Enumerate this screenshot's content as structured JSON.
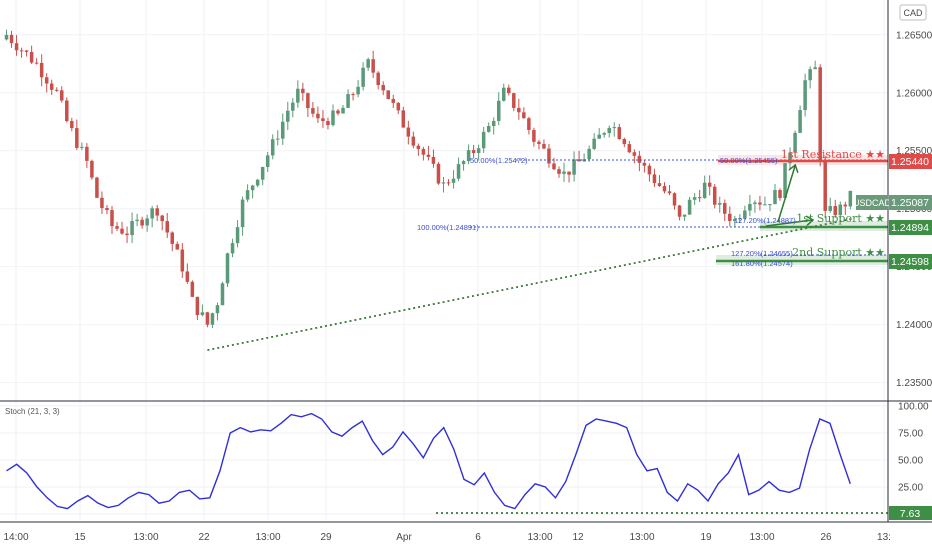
{
  "currency": "CAD",
  "instrument": "USDCAD",
  "last_price": "1.25087",
  "oscillator_title": "Stoch (21, 3, 3)",
  "colors": {
    "up": "#5a9a78",
    "down": "#c9504a",
    "resistance": "#e04a48",
    "support": "#4c9a52",
    "fib": "#3c4fd0",
    "stoch": "#2f2fd8",
    "trend": "#3b7a3b",
    "grid": "#f0f2f6"
  },
  "levels": {
    "resistance_1": {
      "label": "1st Resistance ★★",
      "price": "1.25440"
    },
    "support_1": {
      "label": "1st Support ★★",
      "price": "1.24894"
    },
    "support_2": {
      "label": "2nd Support ★★",
      "price": "1.24598"
    }
  },
  "fib_labels": [
    "50.00%(1.25472)",
    "100.00%(1.24891)",
    "50.00%(1.25455)",
    "127.20%(1.24887)",
    "127.20%(1.24655)",
    "161.80%(1.24574)"
  ],
  "stoch_level": "7.63",
  "chart_data": [
    {
      "type": "candlestick",
      "ylim": [
        1.2335,
        1.268
      ],
      "y_ticks": [
        "1.26500",
        "1.26000",
        "1.25500",
        "1.25000",
        "1.24500",
        "1.24000",
        "1.23500"
      ],
      "y_tick_values": [
        1.265,
        1.26,
        1.255,
        1.25,
        1.245,
        1.24,
        1.235
      ],
      "x_ticks": [
        "14:00",
        "15",
        "13:00",
        "22",
        "13:00",
        "29",
        "Apr",
        "6",
        "13:00",
        "12",
        "13:00",
        "19",
        "13:00",
        "26",
        "13:"
      ],
      "close_path": [
        [
          0,
          1.265
        ],
        [
          6,
          1.2625
        ],
        [
          10,
          1.26
        ],
        [
          12,
          1.2575
        ],
        [
          16,
          1.254
        ],
        [
          18,
          1.251
        ],
        [
          21,
          1.2485
        ],
        [
          24,
          1.248
        ],
        [
          28,
          1.2495
        ],
        [
          30,
          1.25
        ],
        [
          33,
          1.247
        ],
        [
          35,
          1.245
        ],
        [
          37,
          1.242
        ],
        [
          40,
          1.24
        ],
        [
          42,
          1.242
        ],
        [
          44,
          1.246
        ],
        [
          47,
          1.2505
        ],
        [
          50,
          1.253
        ],
        [
          53,
          1.2555
        ],
        [
          56,
          1.2585
        ],
        [
          58,
          1.26
        ],
        [
          62,
          1.2575
        ],
        [
          66,
          1.258
        ],
        [
          69,
          1.26
        ],
        [
          72,
          1.2625
        ],
        [
          75,
          1.2605
        ],
        [
          78,
          1.258
        ],
        [
          81,
          1.256
        ],
        [
          84,
          1.254
        ],
        [
          87,
          1.252
        ],
        [
          90,
          1.2535
        ],
        [
          93,
          1.255
        ],
        [
          96,
          1.257
        ],
        [
          99,
          1.26
        ],
        [
          102,
          1.2585
        ],
        [
          105,
          1.256
        ],
        [
          108,
          1.2545
        ],
        [
          111,
          1.253
        ],
        [
          114,
          1.254
        ],
        [
          117,
          1.2555
        ],
        [
          120,
          1.2575
        ],
        [
          123,
          1.256
        ],
        [
          126,
          1.254
        ],
        [
          129,
          1.2525
        ],
        [
          132,
          1.251
        ],
        [
          134,
          1.249
        ],
        [
          136,
          1.2505
        ],
        [
          139,
          1.252
        ],
        [
          142,
          1.25
        ],
        [
          145,
          1.249
        ],
        [
          148,
          1.251
        ],
        [
          151,
          1.2505
        ],
        [
          154,
          1.2515
        ],
        [
          157,
          1.257
        ],
        [
          159,
          1.261
        ],
        [
          161,
          1.262
        ],
        [
          162,
          1.2545
        ],
        [
          163,
          1.2495
        ],
        [
          166,
          1.25
        ],
        [
          168,
          1.251
        ]
      ],
      "trendline": [
        [
          40,
          1.2378
        ],
        [
          168,
          1.2491
        ]
      ]
    },
    {
      "type": "line",
      "name": "Stoch (21, 3, 3)",
      "ylim": [
        0,
        100
      ],
      "y_ticks": [
        "100.00",
        "75.00",
        "50.00",
        "25.00",
        "0.00"
      ],
      "y_tick_values": [
        100,
        75,
        50,
        25,
        0
      ],
      "points": [
        [
          0,
          40
        ],
        [
          2,
          46
        ],
        [
          4,
          38
        ],
        [
          6,
          25
        ],
        [
          8,
          15
        ],
        [
          10,
          7
        ],
        [
          12,
          5
        ],
        [
          14,
          12
        ],
        [
          16,
          17
        ],
        [
          18,
          10
        ],
        [
          20,
          6
        ],
        [
          22,
          8
        ],
        [
          24,
          15
        ],
        [
          26,
          20
        ],
        [
          28,
          18
        ],
        [
          30,
          10
        ],
        [
          32,
          12
        ],
        [
          34,
          20
        ],
        [
          36,
          22
        ],
        [
          38,
          14
        ],
        [
          40,
          15
        ],
        [
          42,
          40
        ],
        [
          44,
          75
        ],
        [
          46,
          80
        ],
        [
          48,
          76
        ],
        [
          50,
          78
        ],
        [
          52,
          77
        ],
        [
          54,
          84
        ],
        [
          56,
          92
        ],
        [
          58,
          90
        ],
        [
          60,
          93
        ],
        [
          62,
          88
        ],
        [
          64,
          76
        ],
        [
          66,
          72
        ],
        [
          68,
          80
        ],
        [
          70,
          86
        ],
        [
          72,
          68
        ],
        [
          74,
          55
        ],
        [
          76,
          62
        ],
        [
          78,
          76
        ],
        [
          80,
          65
        ],
        [
          82,
          52
        ],
        [
          84,
          70
        ],
        [
          86,
          80
        ],
        [
          88,
          60
        ],
        [
          90,
          32
        ],
        [
          92,
          27
        ],
        [
          94,
          38
        ],
        [
          96,
          20
        ],
        [
          98,
          8
        ],
        [
          100,
          5
        ],
        [
          102,
          18
        ],
        [
          104,
          28
        ],
        [
          106,
          25
        ],
        [
          108,
          15
        ],
        [
          110,
          30
        ],
        [
          112,
          55
        ],
        [
          114,
          82
        ],
        [
          116,
          88
        ],
        [
          118,
          86
        ],
        [
          120,
          84
        ],
        [
          122,
          80
        ],
        [
          124,
          55
        ],
        [
          126,
          40
        ],
        [
          128,
          42
        ],
        [
          130,
          20
        ],
        [
          132,
          12
        ],
        [
          134,
          28
        ],
        [
          136,
          22
        ],
        [
          138,
          12
        ],
        [
          140,
          28
        ],
        [
          142,
          38
        ],
        [
          144,
          55
        ],
        [
          146,
          18
        ],
        [
          148,
          22
        ],
        [
          150,
          30
        ],
        [
          152,
          22
        ],
        [
          154,
          20
        ],
        [
          156,
          24
        ],
        [
          158,
          60
        ],
        [
          160,
          88
        ],
        [
          162,
          84
        ],
        [
          164,
          55
        ],
        [
          166,
          28
        ]
      ]
    }
  ]
}
